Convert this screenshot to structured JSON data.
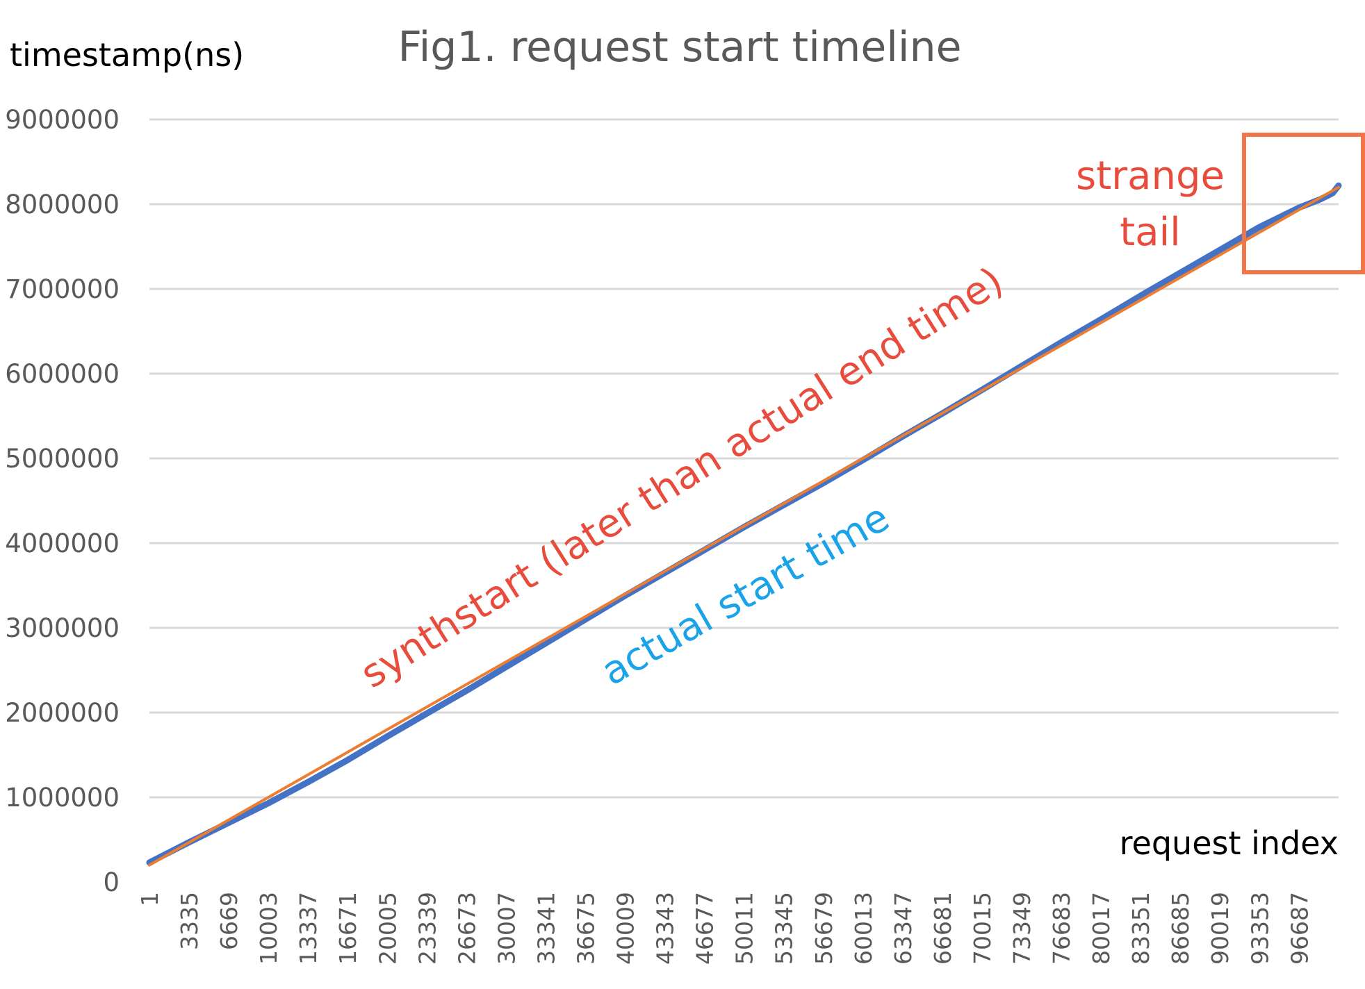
{
  "chart_data": {
    "type": "line",
    "title": "Fig1. request start timeline",
    "ylabel": "timestamp(ns)",
    "xlabel": "request index",
    "ylim": [
      0,
      9000000
    ],
    "yticks": [
      0,
      1000000,
      2000000,
      3000000,
      4000000,
      5000000,
      6000000,
      7000000,
      8000000,
      9000000
    ],
    "xlim": [
      1,
      100000
    ],
    "xticks": [
      "1",
      "3335",
      "6669",
      "10003",
      "13337",
      "16671",
      "20005",
      "23339",
      "26673",
      "30007",
      "33341",
      "36675",
      "40009",
      "43343",
      "46677",
      "50011",
      "53345",
      "56679",
      "60013",
      "63347",
      "66681",
      "70015",
      "73349",
      "76683",
      "80017",
      "83351",
      "86685",
      "90019",
      "93353",
      "96687"
    ],
    "grid": true,
    "series": [
      {
        "name": "synthstart (later than actual end time)",
        "color": "#ed7d31",
        "x": [
          1,
          100000
        ],
        "y": [
          200000,
          8200000
        ]
      },
      {
        "name": "actual start time",
        "color": "#4472c4",
        "x": [
          1,
          3335,
          6669,
          10003,
          13337,
          16671,
          20005,
          23339,
          26673,
          30007,
          33341,
          36675,
          40009,
          43343,
          46677,
          50011,
          53345,
          56679,
          60013,
          63347,
          66681,
          70015,
          73349,
          76683,
          80017,
          83351,
          86685,
          90019,
          93353,
          96687,
          98500,
          99500,
          100000
        ],
        "y": [
          230000,
          470000,
          700000,
          930000,
          1180000,
          1440000,
          1720000,
          1990000,
          2260000,
          2540000,
          2820000,
          3100000,
          3380000,
          3650000,
          3920000,
          4190000,
          4450000,
          4710000,
          4980000,
          5260000,
          5530000,
          5810000,
          6090000,
          6370000,
          6640000,
          6920000,
          7190000,
          7460000,
          7730000,
          7960000,
          8060000,
          8130000,
          8220000
        ]
      }
    ],
    "annotations": [
      {
        "text": "synthstart (later than actual end time)",
        "color": "#e84c3d"
      },
      {
        "text": "actual start time",
        "color": "#1aa3e8"
      },
      {
        "text_lines": [
          "strange",
          "tail"
        ],
        "color": "#e84c3d",
        "box_color": "#f07548"
      }
    ]
  }
}
